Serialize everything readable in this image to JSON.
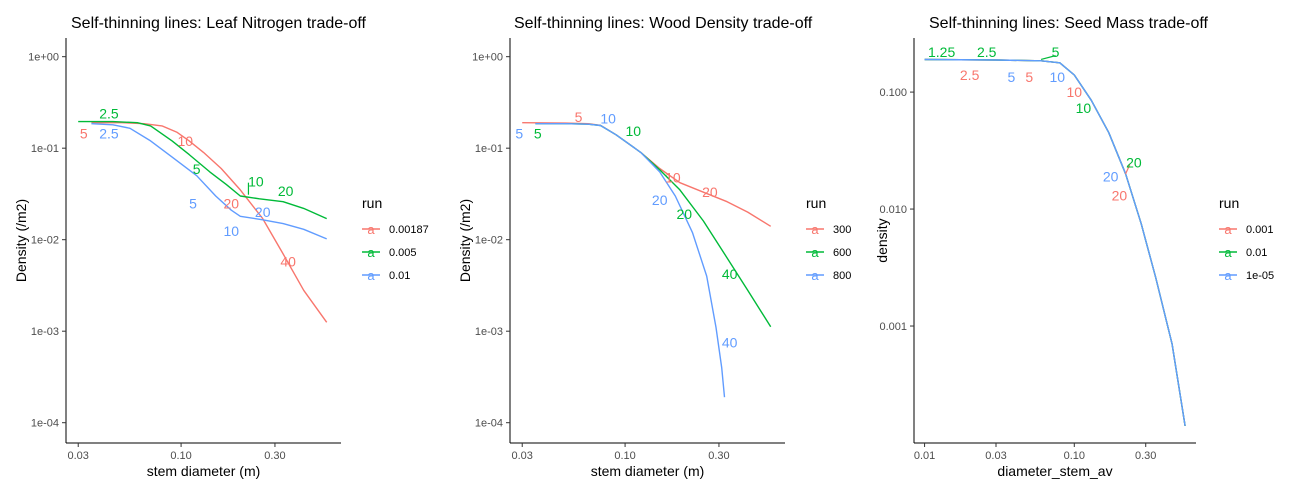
{
  "chart_data": [
    {
      "type": "line",
      "title": "Self-thinning lines: Leaf Nitrogen trade-off",
      "xlabel": "stem diameter (m)",
      "ylabel": "Density (/m2)",
      "x_scale": "log10",
      "y_scale": "log10",
      "xlim": [
        0.026,
        0.65
      ],
      "ylim": [
        6e-05,
        1.6
      ],
      "x_ticks": [
        {
          "v": 0.03,
          "label": "0.03"
        },
        {
          "v": 0.1,
          "label": "0.10"
        },
        {
          "v": 0.3,
          "label": "0.30"
        }
      ],
      "y_ticks": [
        {
          "v": 1,
          "label": "1e+00"
        },
        {
          "v": 0.1,
          "label": "1e-01"
        },
        {
          "v": 0.01,
          "label": "1e-02"
        },
        {
          "v": 0.001,
          "label": "1e-03"
        },
        {
          "v": 0.0001,
          "label": "1e-04"
        }
      ],
      "legend": {
        "title": "run",
        "position": "right",
        "entries": [
          "0.00187",
          "0.005",
          "0.01"
        ],
        "key_glyph": "a"
      },
      "series": [
        {
          "name": "0.00187",
          "color": "#F8766D",
          "points": [
            [
              0.035,
              0.19
            ],
            [
              0.05,
              0.19
            ],
            [
              0.065,
              0.185
            ],
            [
              0.08,
              0.175
            ],
            [
              0.095,
              0.15
            ],
            [
              0.11,
              0.12
            ],
            [
              0.13,
              0.09
            ],
            [
              0.16,
              0.06
            ],
            [
              0.2,
              0.035
            ],
            [
              0.26,
              0.017
            ],
            [
              0.33,
              0.007
            ],
            [
              0.42,
              0.0028
            ],
            [
              0.55,
              0.00125
            ]
          ]
        },
        {
          "name": "0.005",
          "color": "#00BA38",
          "points": [
            [
              0.03,
              0.195
            ],
            [
              0.045,
              0.195
            ],
            [
              0.06,
              0.19
            ],
            [
              0.07,
              0.175
            ],
            [
              0.09,
              0.12
            ],
            [
              0.11,
              0.085
            ],
            [
              0.14,
              0.055
            ],
            [
              0.17,
              0.04
            ],
            [
              0.2,
              0.03
            ],
            [
              0.25,
              0.028
            ],
            [
              0.33,
              0.026
            ],
            [
              0.42,
              0.022
            ],
            [
              0.55,
              0.017
            ]
          ]
        },
        {
          "name": "0.01",
          "color": "#619CFF",
          "points": [
            [
              0.035,
              0.185
            ],
            [
              0.045,
              0.18
            ],
            [
              0.055,
              0.165
            ],
            [
              0.07,
              0.12
            ],
            [
              0.09,
              0.08
            ],
            [
              0.12,
              0.05
            ],
            [
              0.15,
              0.03
            ],
            [
              0.18,
              0.021
            ],
            [
              0.2,
              0.018
            ],
            [
              0.26,
              0.0165
            ],
            [
              0.33,
              0.015
            ],
            [
              0.42,
              0.013
            ],
            [
              0.55,
              0.0102
            ]
          ]
        }
      ],
      "annotations": [
        {
          "text": "2.5",
          "x": 0.043,
          "y": 0.24,
          "series": "0.005"
        },
        {
          "text": "5",
          "x": 0.032,
          "y": 0.145,
          "series": "0.00187"
        },
        {
          "text": "2.5",
          "x": 0.043,
          "y": 0.145,
          "series": "0.01"
        },
        {
          "text": "10",
          "x": 0.105,
          "y": 0.12,
          "series": "0.00187"
        },
        {
          "text": "5",
          "x": 0.12,
          "y": 0.059,
          "series": "0.005"
        },
        {
          "text": "10",
          "x": 0.24,
          "y": 0.043,
          "series": "0.005"
        },
        {
          "text": "20",
          "x": 0.34,
          "y": 0.034,
          "series": "0.005"
        },
        {
          "text": "5",
          "x": 0.115,
          "y": 0.025,
          "series": "0.01"
        },
        {
          "text": "20",
          "x": 0.18,
          "y": 0.025,
          "series": "0.00187"
        },
        {
          "text": "20",
          "x": 0.26,
          "y": 0.02,
          "series": "0.01"
        },
        {
          "text": "10",
          "x": 0.18,
          "y": 0.0125,
          "series": "0.01"
        },
        {
          "text": "40",
          "x": 0.35,
          "y": 0.0058,
          "series": "0.00187"
        }
      ],
      "segments": [
        {
          "series": "0.005",
          "from": [
            0.22,
            0.031
          ],
          "to": [
            0.22,
            0.042
          ]
        }
      ]
    },
    {
      "type": "line",
      "title": "Self-thinning lines: Wood Density trade-off",
      "xlabel": "stem diameter (m)",
      "ylabel": "Density (/m2)",
      "x_scale": "log10",
      "y_scale": "log10",
      "xlim": [
        0.026,
        0.65
      ],
      "ylim": [
        6e-05,
        1.6
      ],
      "x_ticks": [
        {
          "v": 0.03,
          "label": "0.03"
        },
        {
          "v": 0.1,
          "label": "0.10"
        },
        {
          "v": 0.3,
          "label": "0.30"
        }
      ],
      "y_ticks": [
        {
          "v": 1,
          "label": "1e+00"
        },
        {
          "v": 0.1,
          "label": "1e-01"
        },
        {
          "v": 0.01,
          "label": "1e-02"
        },
        {
          "v": 0.001,
          "label": "1e-03"
        },
        {
          "v": 0.0001,
          "label": "1e-04"
        }
      ],
      "legend": {
        "title": "run",
        "position": "right",
        "entries": [
          "300",
          "600",
          "800"
        ],
        "key_glyph": "a"
      },
      "series": [
        {
          "name": "300",
          "color": "#F8766D",
          "points": [
            [
              0.03,
              0.19
            ],
            [
              0.05,
              0.188
            ],
            [
              0.065,
              0.185
            ],
            [
              0.075,
              0.178
            ],
            [
              0.09,
              0.14
            ],
            [
              0.12,
              0.09
            ],
            [
              0.15,
              0.06
            ],
            [
              0.19,
              0.042
            ],
            [
              0.25,
              0.033
            ],
            [
              0.33,
              0.026
            ],
            [
              0.42,
              0.02
            ],
            [
              0.55,
              0.014
            ]
          ]
        },
        {
          "name": "600",
          "color": "#00BA38",
          "points": [
            [
              0.035,
              0.185
            ],
            [
              0.05,
              0.185
            ],
            [
              0.065,
              0.183
            ],
            [
              0.075,
              0.177
            ],
            [
              0.09,
              0.14
            ],
            [
              0.12,
              0.09
            ],
            [
              0.15,
              0.058
            ],
            [
              0.19,
              0.035
            ],
            [
              0.25,
              0.016
            ],
            [
              0.32,
              0.007
            ],
            [
              0.42,
              0.0028
            ],
            [
              0.55,
              0.00112
            ]
          ]
        },
        {
          "name": "800",
          "color": "#619CFF",
          "points": [
            [
              0.035,
              0.185
            ],
            [
              0.05,
              0.185
            ],
            [
              0.065,
              0.183
            ],
            [
              0.075,
              0.177
            ],
            [
              0.09,
              0.14
            ],
            [
              0.12,
              0.09
            ],
            [
              0.15,
              0.055
            ],
            [
              0.18,
              0.03
            ],
            [
              0.22,
              0.012
            ],
            [
              0.26,
              0.004
            ],
            [
              0.29,
              0.0011
            ],
            [
              0.31,
              0.0004
            ],
            [
              0.32,
              0.00019
            ]
          ]
        }
      ],
      "annotations": [
        {
          "text": "5",
          "x": 0.058,
          "y": 0.22,
          "series": "300"
        },
        {
          "text": "10",
          "x": 0.082,
          "y": 0.21,
          "series": "800"
        },
        {
          "text": "10",
          "x": 0.11,
          "y": 0.155,
          "series": "600"
        },
        {
          "text": "5",
          "x": 0.029,
          "y": 0.145,
          "series": "800"
        },
        {
          "text": "5",
          "x": 0.036,
          "y": 0.145,
          "series": "600"
        },
        {
          "text": "10",
          "x": 0.175,
          "y": 0.048,
          "series": "300"
        },
        {
          "text": "20",
          "x": 0.27,
          "y": 0.033,
          "series": "300"
        },
        {
          "text": "20",
          "x": 0.15,
          "y": 0.027,
          "series": "800"
        },
        {
          "text": "20",
          "x": 0.2,
          "y": 0.019,
          "series": "600"
        },
        {
          "text": "40",
          "x": 0.34,
          "y": 0.0042,
          "series": "600"
        },
        {
          "text": "40",
          "x": 0.34,
          "y": 0.00075,
          "series": "800"
        }
      ]
    },
    {
      "type": "line",
      "title": "Self-thinning lines: Seed Mass trade-off",
      "xlabel": "diameter_stem_av",
      "ylabel": "density",
      "x_scale": "log10",
      "y_scale": "log10",
      "xlim": [
        0.0085,
        0.65
      ],
      "ylim": [
        0.0001,
        0.29
      ],
      "x_ticks": [
        {
          "v": 0.01,
          "label": "0.01"
        },
        {
          "v": 0.03,
          "label": "0.03"
        },
        {
          "v": 0.1,
          "label": "0.10"
        },
        {
          "v": 0.3,
          "label": "0.30"
        }
      ],
      "y_ticks": [
        {
          "v": 0.1,
          "label": "0.100"
        },
        {
          "v": 0.01,
          "label": "0.010"
        },
        {
          "v": 0.001,
          "label": "0.001"
        }
      ],
      "legend": {
        "title": "run",
        "position": "right",
        "entries": [
          "0.001",
          "0.01",
          "1e-05"
        ],
        "key_glyph": "a"
      },
      "series": [
        {
          "name": "0.001",
          "color": "#F8766D",
          "points": [
            [
              0.01,
              0.19
            ],
            [
              0.03,
              0.188
            ],
            [
              0.06,
              0.185
            ],
            [
              0.08,
              0.178
            ],
            [
              0.1,
              0.14
            ],
            [
              0.13,
              0.085
            ],
            [
              0.17,
              0.045
            ],
            [
              0.22,
              0.02
            ],
            [
              0.28,
              0.0075
            ],
            [
              0.35,
              0.0026
            ],
            [
              0.45,
              0.0007
            ],
            [
              0.55,
              0.00014
            ]
          ]
        },
        {
          "name": "0.01",
          "color": "#00BA38",
          "points": [
            [
              0.01,
              0.19
            ],
            [
              0.03,
              0.188
            ],
            [
              0.06,
              0.185
            ],
            [
              0.08,
              0.178
            ],
            [
              0.1,
              0.14
            ],
            [
              0.13,
              0.085
            ],
            [
              0.17,
              0.045
            ],
            [
              0.22,
              0.02
            ],
            [
              0.28,
              0.0075
            ],
            [
              0.35,
              0.0026
            ],
            [
              0.45,
              0.0007
            ],
            [
              0.55,
              0.00014
            ]
          ]
        },
        {
          "name": "1e-05",
          "color": "#619CFF",
          "points": [
            [
              0.01,
              0.19
            ],
            [
              0.03,
              0.188
            ],
            [
              0.06,
              0.185
            ],
            [
              0.08,
              0.178
            ],
            [
              0.1,
              0.14
            ],
            [
              0.13,
              0.085
            ],
            [
              0.17,
              0.045
            ],
            [
              0.22,
              0.02
            ],
            [
              0.28,
              0.0075
            ],
            [
              0.35,
              0.0026
            ],
            [
              0.45,
              0.0007
            ],
            [
              0.55,
              0.00014
            ]
          ]
        }
      ],
      "annotations": [
        {
          "text": "1.25",
          "x": 0.013,
          "y": 0.22,
          "series": "0.01"
        },
        {
          "text": "2.5",
          "x": 0.026,
          "y": 0.22,
          "series": "0.01"
        },
        {
          "text": "5",
          "x": 0.075,
          "y": 0.22,
          "series": "0.01"
        },
        {
          "text": "2.5",
          "x": 0.02,
          "y": 0.14,
          "series": "0.001"
        },
        {
          "text": "5",
          "x": 0.038,
          "y": 0.135,
          "series": "1e-05"
        },
        {
          "text": "5",
          "x": 0.05,
          "y": 0.135,
          "series": "0.001"
        },
        {
          "text": "10",
          "x": 0.077,
          "y": 0.135,
          "series": "1e-05"
        },
        {
          "text": "10",
          "x": 0.1,
          "y": 0.1,
          "series": "0.001"
        },
        {
          "text": "10",
          "x": 0.115,
          "y": 0.073,
          "series": "0.01"
        },
        {
          "text": "20",
          "x": 0.25,
          "y": 0.025,
          "series": "0.01"
        },
        {
          "text": "20",
          "x": 0.175,
          "y": 0.019,
          "series": "1e-05"
        },
        {
          "text": "20",
          "x": 0.2,
          "y": 0.013,
          "series": "0.001"
        }
      ],
      "segments": [
        {
          "series": "0.01",
          "from": [
            0.06,
            0.19
          ],
          "to": [
            0.075,
            0.205
          ]
        },
        {
          "series": "0.001",
          "from": [
            0.22,
            0.02
          ],
          "to": [
            0.235,
            0.024
          ]
        }
      ]
    }
  ]
}
